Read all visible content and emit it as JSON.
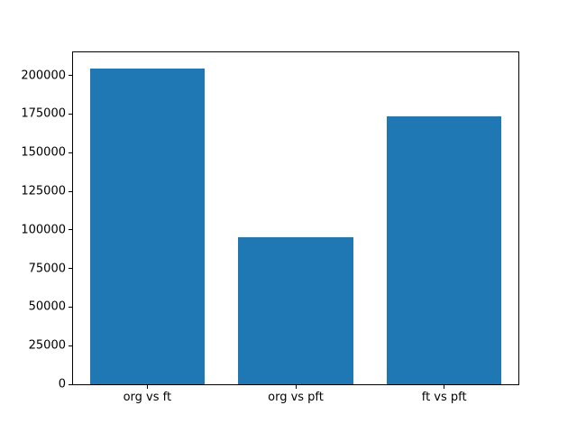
{
  "figure": {
    "background": "#ffffff",
    "frame_color": "#000000",
    "text_color": "#000000"
  },
  "chart_data": {
    "type": "bar",
    "categories": [
      "org vs ft",
      "org vs pft",
      "ft vs pft"
    ],
    "values": [
      204500,
      95500,
      173500
    ],
    "yticks": [
      0,
      25000,
      50000,
      75000,
      100000,
      125000,
      150000,
      175000,
      200000
    ],
    "ylim": [
      0,
      215000
    ],
    "bar_color": "#1f77b4",
    "bar_width_fraction": 0.775,
    "grid": false,
    "legend": null,
    "axes_frame": true
  }
}
